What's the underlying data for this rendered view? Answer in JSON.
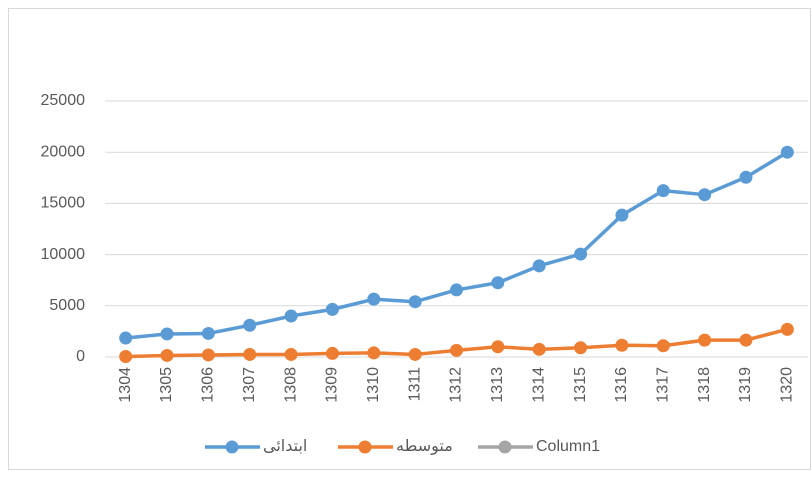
{
  "chart_data": {
    "type": "line",
    "categories": [
      "1304",
      "1305",
      "1306",
      "1307",
      "1308",
      "1309",
      "1310",
      "1311",
      "1312",
      "1313",
      "1314",
      "1315",
      "1316",
      "1317",
      "1318",
      "1319",
      "1320"
    ],
    "series": [
      {
        "name": "ابتدائی",
        "color": "#5b9bd5",
        "values": [
          1850,
          2250,
          2300,
          3100,
          4000,
          4650,
          5650,
          5400,
          6550,
          7250,
          8900,
          10050,
          13850,
          16250,
          15850,
          17550,
          20000
        ]
      },
      {
        "name": "متوسطه",
        "color": "#ed7d31",
        "values": [
          50,
          150,
          200,
          250,
          250,
          350,
          400,
          250,
          650,
          1000,
          750,
          900,
          1150,
          1100,
          1650,
          1650,
          2700
        ]
      },
      {
        "name": "Column1",
        "color": "#a5a5a5",
        "values": [
          null,
          null,
          null,
          null,
          null,
          null,
          null,
          null,
          null,
          null,
          null,
          null,
          null,
          null,
          null,
          null,
          null
        ]
      }
    ],
    "ylim": [
      0,
      25000
    ],
    "yticks": [
      0,
      5000,
      10000,
      15000,
      20000,
      25000
    ],
    "grid": true,
    "legend": "bottom"
  }
}
